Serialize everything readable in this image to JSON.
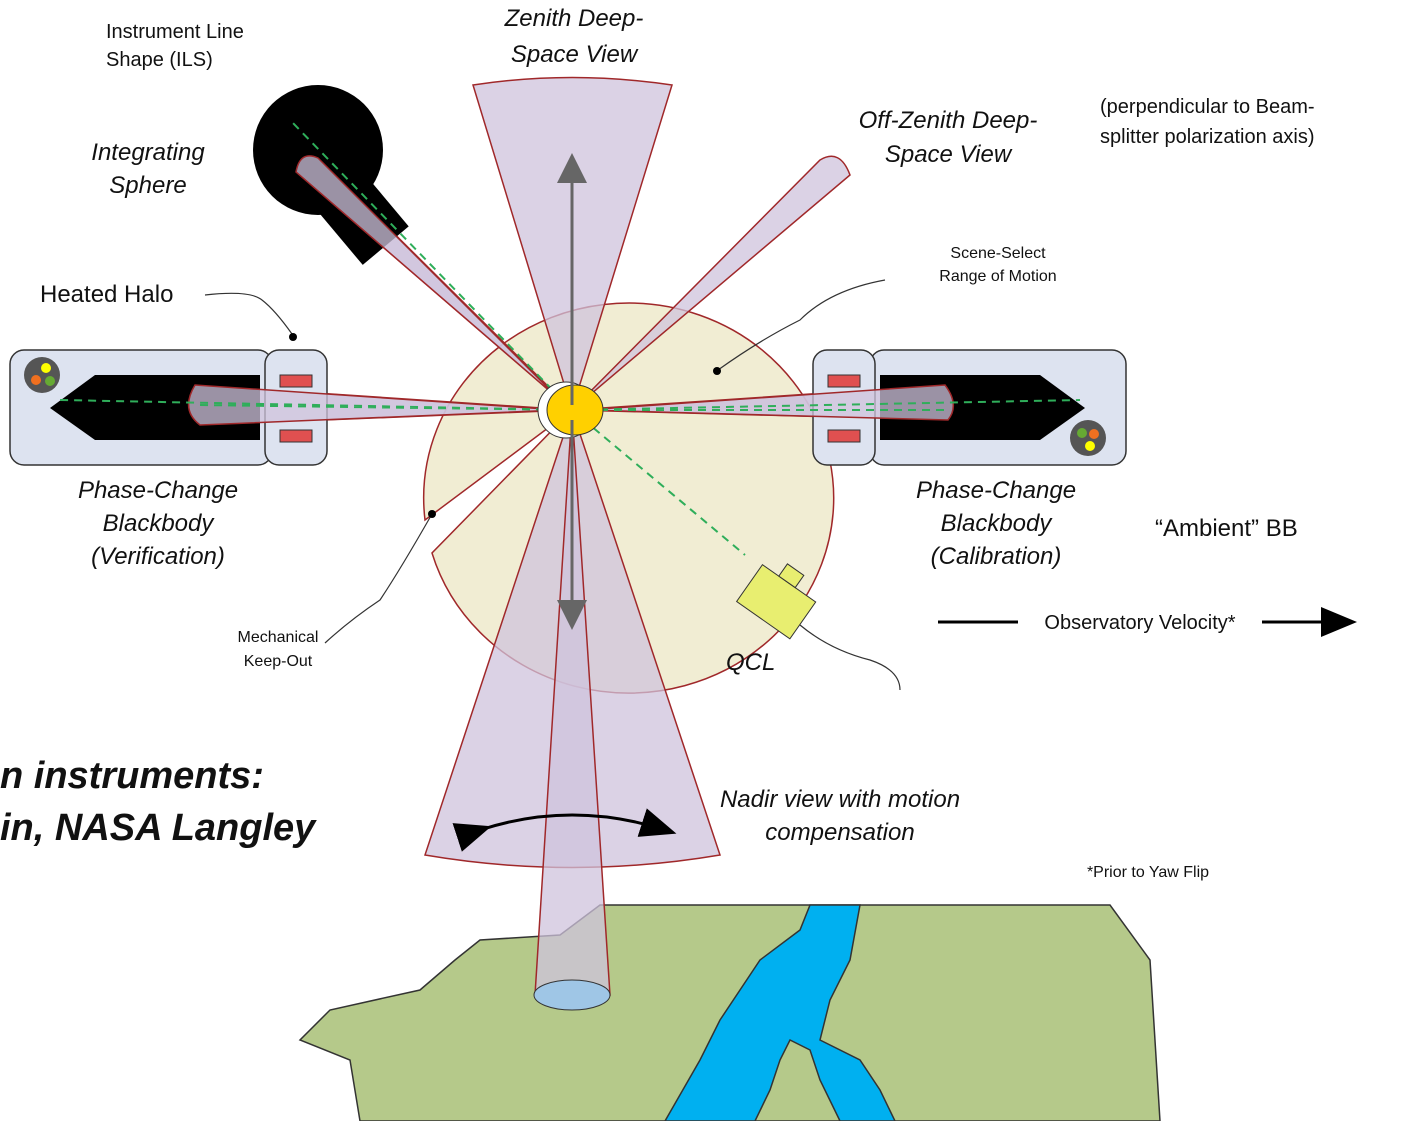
{
  "labels": {
    "ils": [
      "Instrument Line",
      "Shape (ILS)"
    ],
    "zenith": [
      "Zenith Deep-",
      "Space View"
    ],
    "perpendicular": [
      "(perpendicular to Beam-",
      "splitter polarization axis)"
    ],
    "off_zenith": [
      "Off-Zenith Deep-",
      "Space View"
    ],
    "sphere": [
      "Integrating",
      "Sphere"
    ],
    "scene_select": [
      "Scene-Select",
      "Range of Motion"
    ],
    "halo": [
      "Heated Halo"
    ],
    "bb_verification": [
      "Phase-Change",
      "Blackbody",
      "(Verification)"
    ],
    "bb_calibration": [
      "Phase-Change",
      "Blackbody",
      "(Calibration)"
    ],
    "ambient": [
      "“Ambient” BB"
    ],
    "keepout": [
      "Mechanical",
      "Keep-Out"
    ],
    "qcl": [
      "QCL"
    ],
    "velocity": [
      "Observatory Velocity*"
    ],
    "title_fragment": [
      "n instruments:",
      "in, NASA Langley"
    ],
    "nadir": [
      "Nadir view with motion",
      "compensation"
    ],
    "yaw": [
      "*Prior to Yaw Flip"
    ]
  }
}
